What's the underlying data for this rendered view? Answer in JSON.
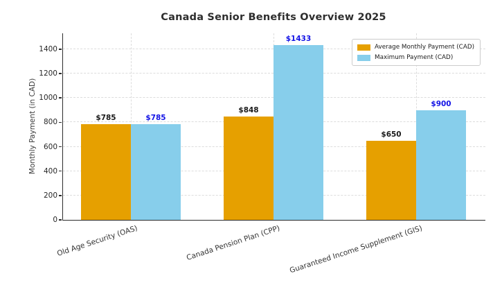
{
  "chart_data": {
    "type": "bar",
    "title": "Canada Senior Benefits Overview 2025",
    "ylabel": "Monthly Payment (in CAD)",
    "xlabel": "",
    "categories": [
      "Old Age Security (OAS)",
      "Canada Pension Plan (CPP)",
      "Guaranteed Income Supplement (GIS)"
    ],
    "series": [
      {
        "name": "Average Monthly Payment (CAD)",
        "values": [
          785,
          848,
          650
        ],
        "value_labels": [
          "$785",
          "$848",
          "$650"
        ],
        "bar_color": "#E6A000",
        "label_color": "#1a1a1a"
      },
      {
        "name": "Maximum Payment (CAD)",
        "values": [
          785,
          1433,
          900
        ],
        "value_labels": [
          "$785",
          "$1433",
          "$900"
        ],
        "bar_color": "#87CEEB",
        "label_color": "#1414e6"
      }
    ],
    "yticks": [
      0,
      200,
      400,
      600,
      800,
      1000,
      1200,
      1400
    ],
    "ylim": [
      0,
      1530
    ],
    "grid": "dashed, horizontal and vertical",
    "legend_position": "upper right",
    "x_label_rotation_deg": 18
  }
}
